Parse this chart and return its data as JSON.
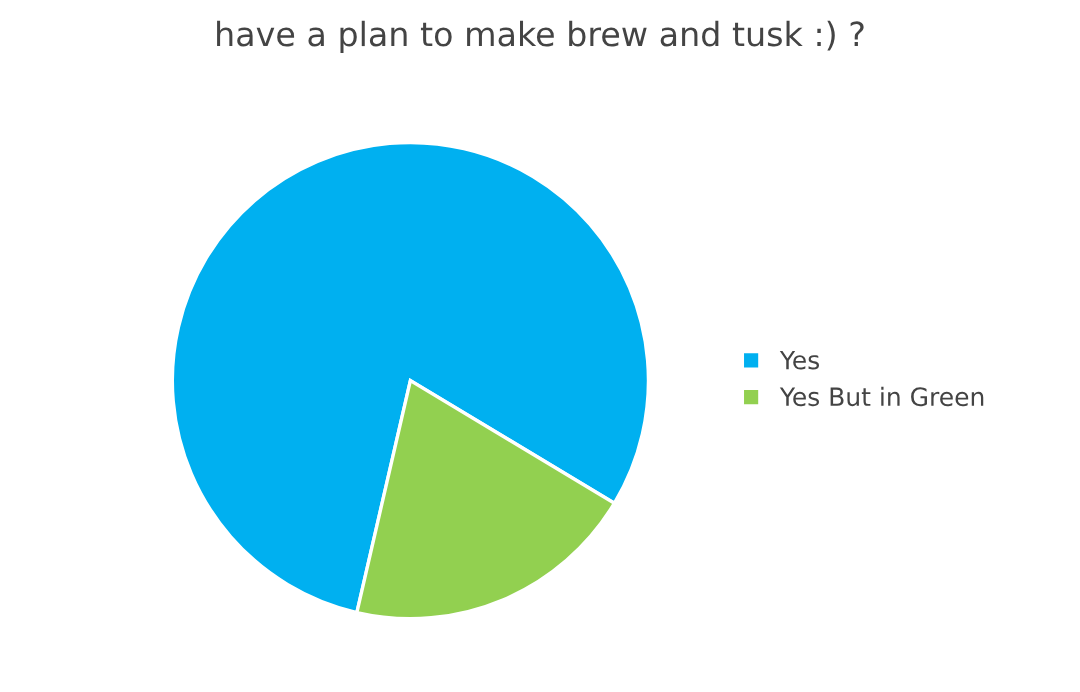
{
  "chart_data": {
    "type": "pie",
    "title": "have a plan to make brew and tusk :) ?",
    "categories": [
      "Yes",
      "Yes But in Green"
    ],
    "values": [
      80,
      20
    ],
    "colors": [
      "#00b0f0",
      "#92d050"
    ],
    "legend": "right"
  }
}
